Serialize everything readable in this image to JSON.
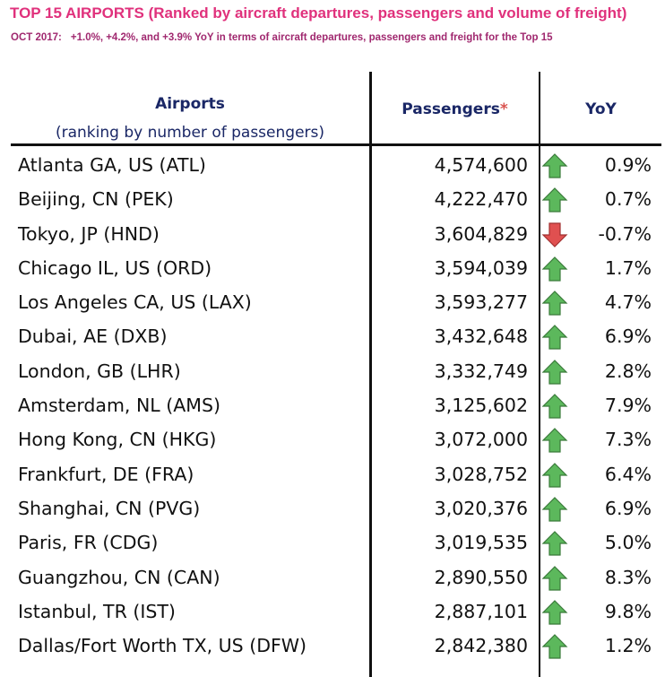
{
  "header": {
    "title": "TOP 15 AIRPORTS (Ranked by aircraft departures, passengers and volume of freight)",
    "subtitle_prefix": "OCT 2017:",
    "subtitle_text": "+1.0%, +4.2%, and +3.9% YoY in terms of aircraft departures, passengers and freight for the Top 15"
  },
  "colors": {
    "title": "#e0317c",
    "subtitle": "#a0286f",
    "header_text": "#1a2766",
    "up": "#5cb85c",
    "down": "#e05050"
  },
  "chart_data": {
    "type": "table",
    "columns": {
      "airports": "Airports",
      "airports_sub": "(ranking by number of passengers)",
      "passengers": "Passengers",
      "passengers_mark": "*",
      "yoy": "YoY"
    },
    "rows": [
      {
        "airport": "Atlanta GA, US (ATL)",
        "passengers": "4,574,600",
        "yoy": "0.9%",
        "trend": "up"
      },
      {
        "airport": "Beijing, CN (PEK)",
        "passengers": "4,222,470",
        "yoy": "0.7%",
        "trend": "up"
      },
      {
        "airport": "Tokyo, JP (HND)",
        "passengers": "3,604,829",
        "yoy": "-0.7%",
        "trend": "down"
      },
      {
        "airport": "Chicago IL, US (ORD)",
        "passengers": "3,594,039",
        "yoy": "1.7%",
        "trend": "up"
      },
      {
        "airport": "Los Angeles CA, US (LAX)",
        "passengers": "3,593,277",
        "yoy": "4.7%",
        "trend": "up"
      },
      {
        "airport": "Dubai, AE (DXB)",
        "passengers": "3,432,648",
        "yoy": "6.9%",
        "trend": "up"
      },
      {
        "airport": "London, GB (LHR)",
        "passengers": "3,332,749",
        "yoy": "2.8%",
        "trend": "up"
      },
      {
        "airport": "Amsterdam, NL (AMS)",
        "passengers": "3,125,602",
        "yoy": "7.9%",
        "trend": "up"
      },
      {
        "airport": "Hong Kong, CN (HKG)",
        "passengers": "3,072,000",
        "yoy": "7.3%",
        "trend": "up"
      },
      {
        "airport": "Frankfurt, DE (FRA)",
        "passengers": "3,028,752",
        "yoy": "6.4%",
        "trend": "up"
      },
      {
        "airport": "Shanghai, CN (PVG)",
        "passengers": "3,020,376",
        "yoy": "6.9%",
        "trend": "up"
      },
      {
        "airport": "Paris, FR (CDG)",
        "passengers": "3,019,535",
        "yoy": "5.0%",
        "trend": "up"
      },
      {
        "airport": "Guangzhou, CN (CAN)",
        "passengers": "2,890,550",
        "yoy": "8.3%",
        "trend": "up"
      },
      {
        "airport": "Istanbul, TR (IST)",
        "passengers": "2,887,101",
        "yoy": "9.8%",
        "trend": "up"
      },
      {
        "airport": "Dallas/Fort Worth TX, US (DFW)",
        "passengers": "2,842,380",
        "yoy": "1.2%",
        "trend": "up"
      }
    ]
  }
}
